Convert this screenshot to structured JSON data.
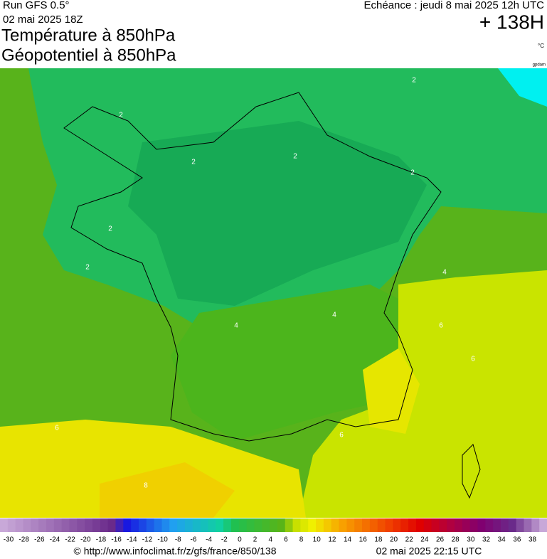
{
  "header": {
    "run": "Run GFS 0.5°",
    "run_date": "02 mai 2025 18Z",
    "title_1": "Température à 850hPa",
    "title_2": "Géopotentiel à 850hPa",
    "valid": "Echéance : jeudi 8 mai 2025 12h UTC",
    "lead": "+ 138H",
    "unit": "°C",
    "tag": "gpdam"
  },
  "map_labels": [
    "2",
    "2",
    "2",
    "2",
    "2",
    "2",
    "2",
    "4",
    "4",
    "4",
    "6",
    "6",
    "6",
    "6",
    "8"
  ],
  "legend": {
    "labels": [
      -30,
      -28,
      -26,
      -24,
      -22,
      -20,
      -18,
      -16,
      -14,
      -12,
      -10,
      -8,
      -6,
      -4,
      -2,
      0,
      2,
      4,
      6,
      8,
      10,
      12,
      14,
      16,
      18,
      20,
      22,
      24,
      26,
      28,
      30,
      32,
      34,
      36,
      38
    ]
  },
  "footer": {
    "source": "© http://www.infoclimat.fr/z/gfs/france/850/138",
    "generated": "02 mai 2025 22:15 UTC"
  }
}
